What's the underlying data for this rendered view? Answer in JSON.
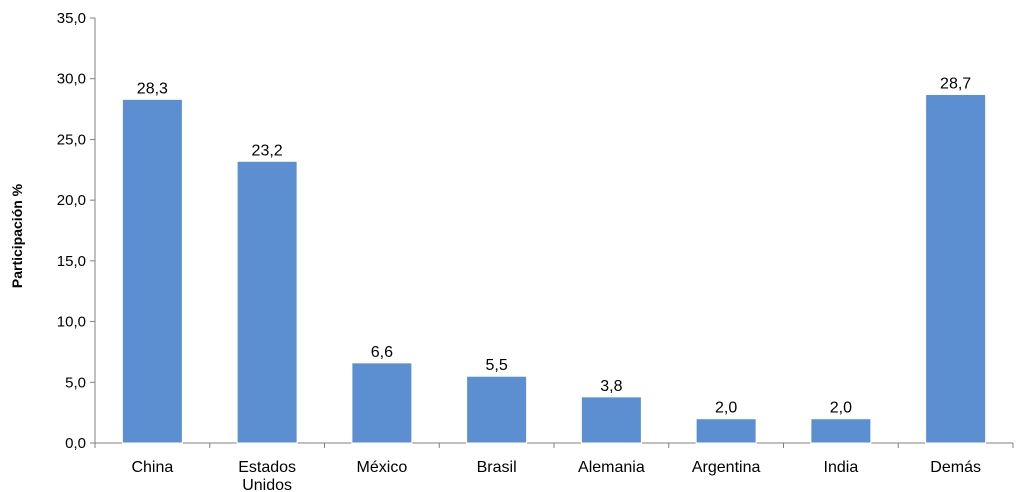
{
  "chart_data": {
    "type": "bar",
    "title": "",
    "xlabel": "",
    "ylabel": "Participación %",
    "ylim": [
      0,
      35
    ],
    "yticks": [
      0,
      5,
      10,
      15,
      20,
      25,
      30,
      35
    ],
    "ytick_labels": [
      "0,0",
      "5,0",
      "10,0",
      "15,0",
      "20,0",
      "25,0",
      "30,0",
      "35,0"
    ],
    "categories": [
      [
        "China"
      ],
      [
        "Estados",
        "Unidos"
      ],
      [
        "México"
      ],
      [
        "Brasil"
      ],
      [
        "Alemania"
      ],
      [
        "Argentina"
      ],
      [
        "India"
      ],
      [
        "Demás"
      ]
    ],
    "values": [
      28.3,
      23.2,
      6.6,
      5.5,
      3.8,
      2.0,
      2.0,
      28.7
    ],
    "value_labels": [
      "28,3",
      "23,2",
      "6,6",
      "5,5",
      "3,8",
      "2,0",
      "2,0",
      "28,7"
    ],
    "bar_color": "#5B8FD1",
    "axis_color": "#808080",
    "grid": false,
    "legend": "none"
  }
}
